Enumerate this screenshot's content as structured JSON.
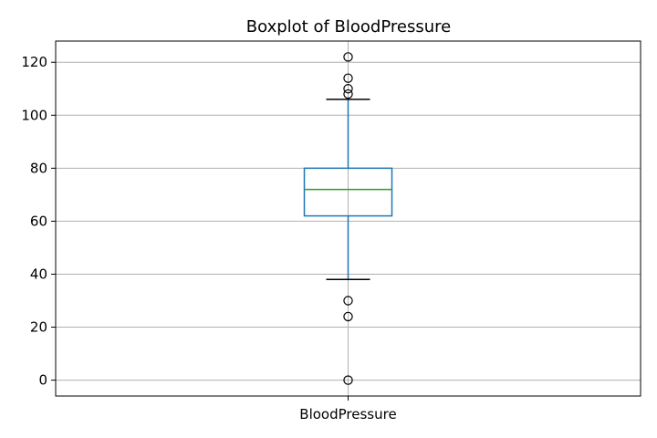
{
  "chart_data": {
    "type": "box",
    "title": "Boxplot of BloodPressure",
    "categories": [
      "BloodPressure"
    ],
    "series": [
      {
        "name": "BloodPressure",
        "q1": 62,
        "median": 72,
        "q3": 80,
        "whisker_low": 38,
        "whisker_high": 106,
        "outliers": [
          0,
          24,
          30,
          108,
          110,
          114,
          122
        ]
      }
    ],
    "ylim": [
      -6,
      128
    ],
    "y_ticks": [
      0,
      20,
      40,
      60,
      80,
      100,
      120
    ],
    "grid": true,
    "colors": {
      "box": "#1f77b4",
      "median": "#2ca02c",
      "whisker": "#1f77b4",
      "cap": "#000000",
      "grid": "#b0b0b0",
      "axis": "#000000",
      "outlier": "#000000"
    }
  }
}
